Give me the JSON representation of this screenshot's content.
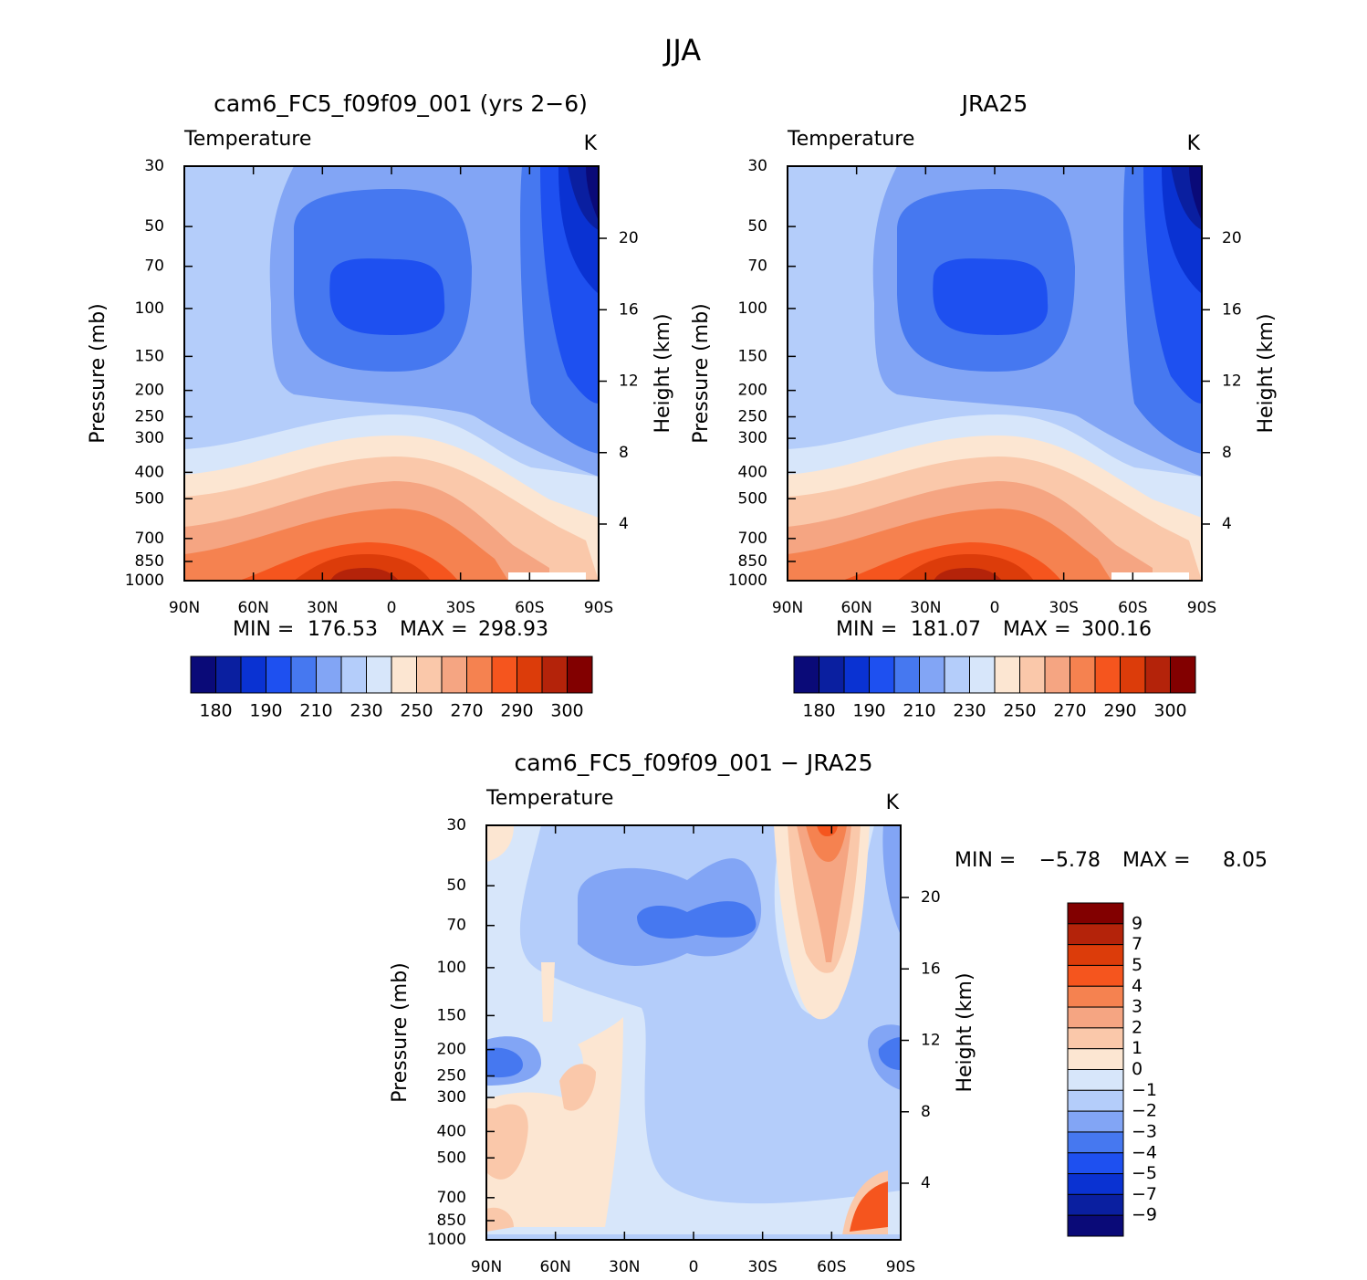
{
  "page_title": "JJA",
  "chart_data": [
    {
      "type": "contour",
      "title": "cam6_FC5_f09f09_001 (yrs 2−6)",
      "subtitle": "Temperature",
      "units": "K",
      "ylabel": "Pressure (mb)",
      "y2label": "Height (km)",
      "ylog": true,
      "ylim": [
        1000,
        30
      ],
      "yticks": [
        30,
        50,
        70,
        100,
        150,
        200,
        250,
        300,
        400,
        500,
        700,
        850,
        1000
      ],
      "y2lim": [
        0.83,
        24.04
      ],
      "y2ticks": [
        4,
        8,
        12,
        16,
        20
      ],
      "xlim": [
        90,
        -90
      ],
      "xticks": [
        {
          "value": 90,
          "label": "90N"
        },
        {
          "value": 60,
          "label": "60N"
        },
        {
          "value": 30,
          "label": "30N"
        },
        0,
        {
          "value": -30,
          "label": "30S"
        },
        {
          "value": -60,
          "label": "60S"
        },
        {
          "value": -90,
          "label": "90S"
        }
      ],
      "min_label": "MIN =",
      "min": 176.53,
      "max_label": "MAX =",
      "max": 298.93,
      "colorbar": {
        "orientation": "horizontal",
        "colors": [
          "#0a0a78",
          "#0a1fa0",
          "#0a32d2",
          "#1e50f0",
          "#4678f0",
          "#82a5f5",
          "#b4cdfa",
          "#d7e6fa",
          "#fce6d2",
          "#fac8aa",
          "#f5a582",
          "#f58250",
          "#f5551e",
          "#dc3c0a",
          "#b4230a",
          "#820000"
        ],
        "labels": [
          180,
          190,
          210,
          230,
          250,
          270,
          290,
          300
        ]
      }
    },
    {
      "type": "contour",
      "title": "JRA25",
      "subtitle": "Temperature",
      "units": "K",
      "ylabel": "Pressure (mb)",
      "y2label": "Height (km)",
      "ylog": true,
      "ylim": [
        1000,
        30
      ],
      "yticks": [
        30,
        50,
        70,
        100,
        150,
        200,
        250,
        300,
        400,
        500,
        700,
        850,
        1000
      ],
      "y2lim": [
        0.83,
        24.04
      ],
      "y2ticks": [
        4,
        8,
        12,
        16,
        20
      ],
      "xlim": [
        90,
        -90
      ],
      "xticks": [
        {
          "value": 90,
          "label": "90N"
        },
        {
          "value": 60,
          "label": "60N"
        },
        {
          "value": 30,
          "label": "30N"
        },
        0,
        {
          "value": -30,
          "label": "30S"
        },
        {
          "value": -60,
          "label": "60S"
        },
        {
          "value": -90,
          "label": "90S"
        }
      ],
      "min_label": "MIN =",
      "min": 181.07,
      "max_label": "MAX =",
      "max": 300.16,
      "colorbar": {
        "orientation": "horizontal",
        "colors": [
          "#0a0a78",
          "#0a1fa0",
          "#0a32d2",
          "#1e50f0",
          "#4678f0",
          "#82a5f5",
          "#b4cdfa",
          "#d7e6fa",
          "#fce6d2",
          "#fac8aa",
          "#f5a582",
          "#f58250",
          "#f5551e",
          "#dc3c0a",
          "#b4230a",
          "#820000"
        ],
        "labels": [
          180,
          190,
          210,
          230,
          250,
          270,
          290,
          300
        ]
      }
    },
    {
      "type": "contour",
      "title": "cam6_FC5_f09f09_001 − JRA25",
      "subtitle": "Temperature",
      "units": "K",
      "ylabel": "Pressure (mb)",
      "y2label": "Height (km)",
      "ylog": true,
      "ylim": [
        1000,
        30
      ],
      "yticks": [
        30,
        50,
        70,
        100,
        150,
        200,
        250,
        300,
        400,
        500,
        700,
        850,
        1000
      ],
      "y2lim": [
        0.83,
        24.04
      ],
      "y2ticks": [
        4,
        8,
        12,
        16,
        20
      ],
      "xlim": [
        90,
        -90
      ],
      "xticks": [
        {
          "value": 90,
          "label": "90N"
        },
        {
          "value": 60,
          "label": "60N"
        },
        {
          "value": 30,
          "label": "30N"
        },
        0,
        {
          "value": -30,
          "label": "30S"
        },
        {
          "value": -60,
          "label": "60S"
        },
        {
          "value": -90,
          "label": "90S"
        }
      ],
      "min_label": "MIN =",
      "min": {
        "value": -5.78,
        "label": "−5.78"
      },
      "max_label": "MAX =",
      "max": 8.05,
      "colorbar": {
        "orientation": "vertical",
        "colors": [
          "#820000",
          "#b4230a",
          "#dc3c0a",
          "#f5551e",
          "#f58250",
          "#f5a582",
          "#fac8aa",
          "#fce6d2",
          "#d7e6fa",
          "#b4cdfa",
          "#82a5f5",
          "#4678f0",
          "#1e50f0",
          "#0a32d2",
          "#0a1fa0",
          "#0a0a78"
        ],
        "labels": [
          9,
          7,
          5,
          4,
          3,
          2,
          1,
          0,
          {
            "value": -1,
            "label": "−1"
          },
          {
            "value": -2,
            "label": "−2"
          },
          {
            "value": -3,
            "label": "−3"
          },
          {
            "value": -4,
            "label": "−4"
          },
          {
            "value": -5,
            "label": "−5"
          },
          {
            "value": -7,
            "label": "−7"
          },
          {
            "value": -9,
            "label": "−9"
          }
        ]
      }
    }
  ]
}
